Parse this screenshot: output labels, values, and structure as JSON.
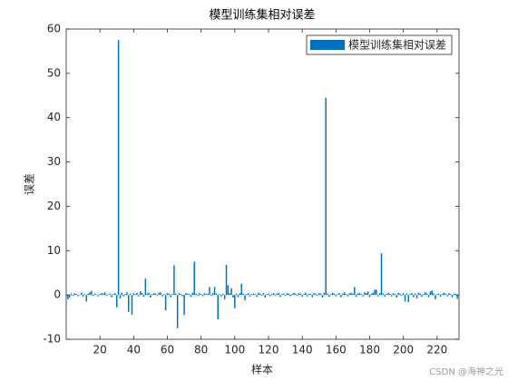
{
  "chart_data": {
    "type": "bar",
    "title": "模型训练集相对误差",
    "xlabel": "样本",
    "ylabel": "误差",
    "watermark": "CSDN @海神之光",
    "series": [
      {
        "name": "模型训练集相对误差",
        "color": "#0072bd",
        "values": [
          -1.0,
          -0.6,
          0.3,
          -0.2,
          0.4,
          0.2,
          -0.3,
          0.1,
          0.5,
          -0.4,
          0.2,
          -1.5,
          0.3,
          0.6,
          0.9,
          -0.2,
          0.3,
          0.1,
          -0.3,
          0.2,
          0.4,
          0.3,
          0.6,
          -0.2,
          0.1,
          0.3,
          -0.5,
          0.2,
          0.4,
          -2.8,
          57.5,
          -0.8,
          0.5,
          -0.3,
          0.2,
          0.6,
          -3.8,
          0.3,
          -4.5,
          0.4,
          0.2,
          0.5,
          -0.3,
          0.8,
          0.4,
          -0.4,
          3.7,
          0.3,
          0.5,
          -0.6,
          0.2,
          0.4,
          0.3,
          -0.2,
          0.5,
          0.6,
          -0.3,
          0.2,
          -3.5,
          0.4,
          0.3,
          -0.5,
          0.2,
          6.7,
          0.3,
          -7.5,
          0.4,
          0.2,
          -0.3,
          -4.5,
          0.4,
          0.3,
          0.2,
          -0.4,
          0.5,
          7.5,
          0.3,
          -0.2,
          0.4,
          0.2,
          -0.3,
          0.4,
          0.2,
          0.3,
          1.8,
          -0.2,
          0.4,
          1.8,
          0.3,
          -5.5,
          0.2,
          -0.4,
          0.3,
          -1.0,
          6.8,
          2.2,
          0.4,
          1.5,
          -0.6,
          -3.0,
          0.3,
          -0.5,
          0.4,
          2.5,
          0.3,
          -1.2,
          0.2,
          0.4,
          -0.3,
          0.2,
          0.3,
          0.2,
          -0.4,
          0.5,
          0.3,
          -0.2,
          0.4,
          -0.6,
          0.2,
          0.3,
          -0.3,
          0.2,
          0.4,
          -0.2,
          0.3,
          0.5,
          -0.4,
          0.2,
          0.3,
          -0.2,
          0.4,
          0.3,
          -0.3,
          0.2,
          0.5,
          0.3,
          -0.2,
          0.4,
          0.3,
          -0.4,
          0.2,
          0.5,
          -0.3,
          0.3,
          0.2,
          -0.5,
          0.4,
          0.3,
          -0.2,
          0.4,
          0.3,
          -0.6,
          0.5,
          44.5,
          0.3,
          -0.4,
          0.2,
          0.5,
          0.3,
          -0.3,
          0.2,
          0.4,
          -0.5,
          0.3,
          0.6,
          0.2,
          -0.3,
          0.4,
          0.5,
          0.3,
          1.8,
          -0.4,
          0.3,
          0.5,
          0.2,
          -0.3,
          0.6,
          0.4,
          0.8,
          -0.5,
          0.3,
          0.5,
          1.2,
          1.2,
          -0.3,
          0.4,
          9.4,
          0.3,
          -0.4,
          0.2,
          0.5,
          0.3,
          -0.3,
          0.4,
          0.2,
          -0.6,
          0.5,
          0.3,
          -0.2,
          0.4,
          -1.5,
          0.3,
          -1.6,
          0.2,
          0.4,
          -0.5,
          0.3,
          -0.8,
          0.5,
          0.3,
          -0.4,
          0.2,
          0.6,
          0.3,
          -0.5,
          0.8,
          1.0,
          0.3,
          -1.0,
          0.2,
          0.3,
          -0.4,
          0.2,
          0.5,
          0.3,
          -0.3,
          0.4,
          0.2,
          -0.5,
          0.3,
          0.2,
          -0.9
        ]
      }
    ],
    "x": [
      1,
      2,
      3,
      4,
      5,
      6,
      7,
      8,
      9,
      10,
      11,
      12,
      13,
      14,
      15,
      16,
      17,
      18,
      19,
      20,
      21,
      22,
      23,
      24,
      25,
      26,
      27,
      28,
      29,
      30,
      31,
      32,
      33,
      34,
      35,
      36,
      37,
      38,
      39,
      40,
      41,
      42,
      43,
      44,
      45,
      46,
      47,
      48,
      49,
      50,
      51,
      52,
      53,
      54,
      55,
      56,
      57,
      58,
      59,
      60,
      61,
      62,
      63,
      64,
      65,
      66,
      67,
      68,
      69,
      70,
      71,
      72,
      73,
      74,
      75,
      76,
      77,
      78,
      79,
      80,
      81,
      82,
      83,
      84,
      85,
      86,
      87,
      88,
      89,
      90,
      91,
      92,
      93,
      94,
      95,
      96,
      97,
      98,
      99,
      100,
      101,
      102,
      103,
      104,
      105,
      106,
      107,
      108,
      109,
      110,
      111,
      112,
      113,
      114,
      115,
      116,
      117,
      118,
      119,
      120,
      121,
      122,
      123,
      124,
      125,
      126,
      127,
      128,
      129,
      130,
      131,
      132,
      133,
      134,
      135,
      136,
      137,
      138,
      139,
      140,
      141,
      142,
      143,
      144,
      145,
      146,
      147,
      148,
      149,
      150,
      151,
      152,
      153,
      154,
      155,
      156,
      157,
      158,
      159,
      160,
      161,
      162,
      163,
      164,
      165,
      166,
      167,
      168,
      169,
      170,
      171,
      172,
      173,
      174,
      175,
      176,
      177,
      178,
      179,
      180,
      181,
      182,
      183,
      184,
      185,
      186,
      187,
      188,
      189,
      190,
      191,
      192,
      193,
      194,
      195,
      196,
      197,
      198,
      199,
      200,
      201,
      202,
      203,
      204,
      205,
      206,
      207,
      208,
      209,
      210,
      211,
      212,
      213,
      214,
      215,
      216,
      217,
      218,
      219,
      220,
      221,
      222,
      223,
      224,
      225,
      226,
      227,
      228,
      229,
      230,
      231,
      232
    ],
    "xlim": [
      0,
      233
    ],
    "xticks": [
      20,
      40,
      60,
      80,
      100,
      120,
      140,
      160,
      180,
      200,
      220
    ],
    "ylim": [
      -10,
      60
    ],
    "yticks": [
      -10,
      0,
      10,
      20,
      30,
      40,
      50,
      60
    ],
    "legend": "top-right"
  }
}
